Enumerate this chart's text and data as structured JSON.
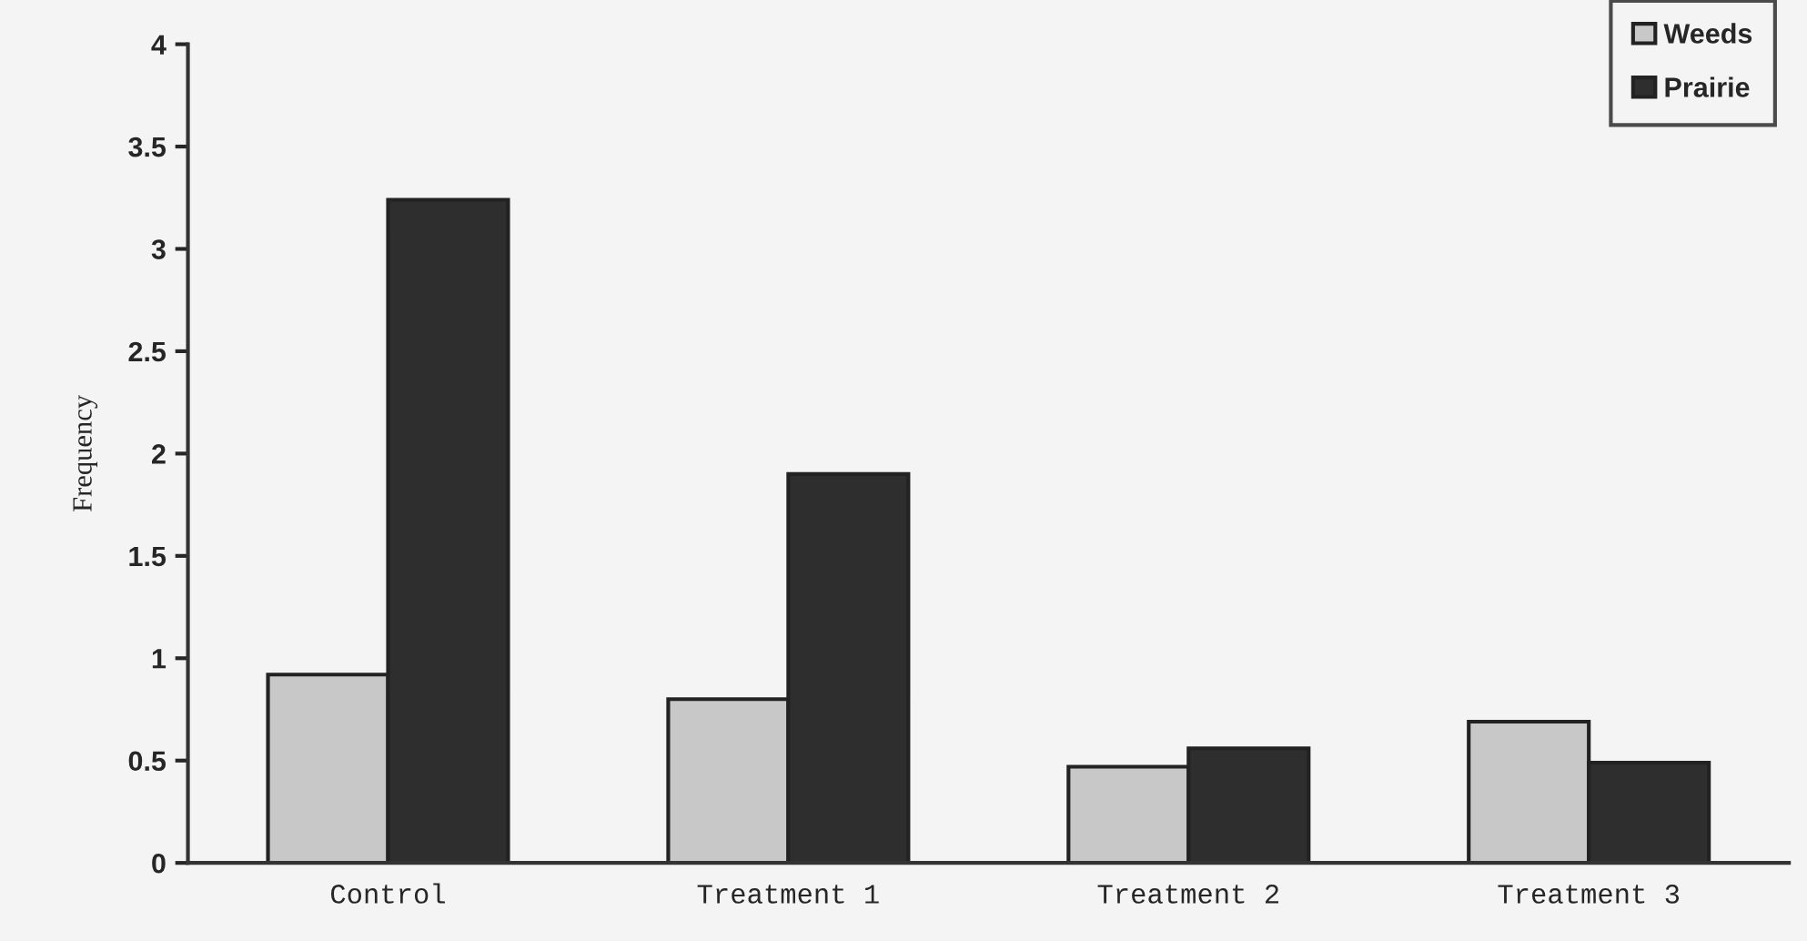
{
  "chart_data": {
    "type": "bar",
    "ylabel": "Frequency",
    "categories": [
      "Control",
      "Treatment 1",
      "Treatment 2",
      "Treatment 3"
    ],
    "series": [
      {
        "name": "Weeds",
        "color": "#c8c8c8",
        "values": [
          0.92,
          0.8,
          0.47,
          0.69
        ]
      },
      {
        "name": "Prairie",
        "color": "#2e2e2e",
        "values": [
          3.24,
          1.9,
          0.56,
          0.49
        ]
      }
    ],
    "ylim": [
      0,
      4
    ],
    "yticks": [
      0,
      0.5,
      1,
      1.5,
      2,
      2.5,
      3,
      3.5,
      4
    ],
    "grid": false,
    "legend": "top right"
  }
}
